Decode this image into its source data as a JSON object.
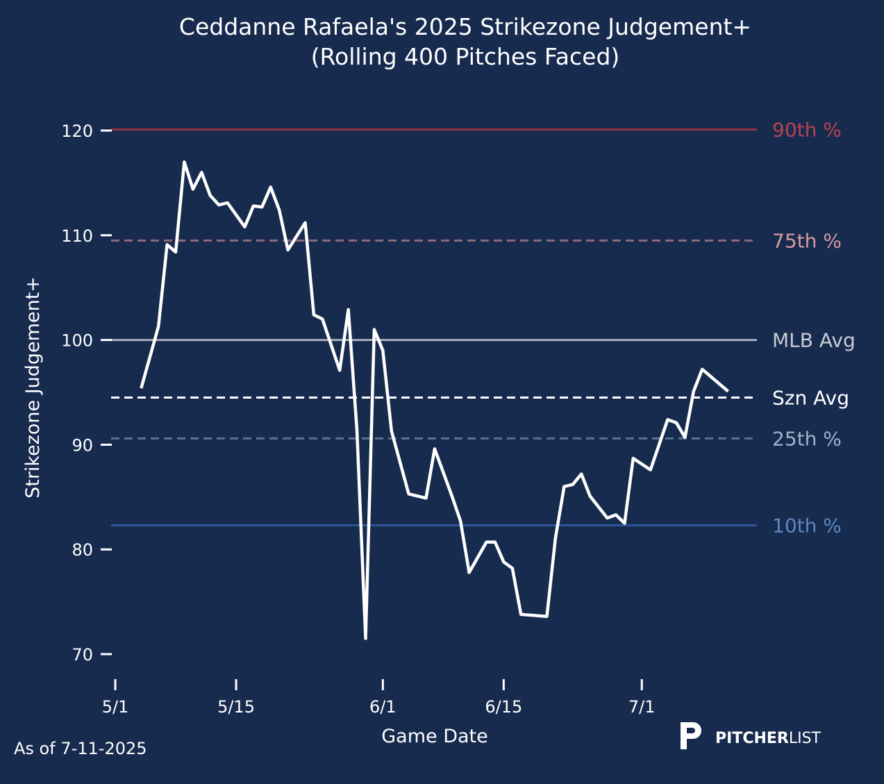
{
  "chart_data": {
    "type": "line",
    "title": "Ceddanne Rafaela's 2025 Strikezone Judgement+",
    "subtitle": "(Rolling 400 Pitches Faced)",
    "xlabel": "Game Date",
    "ylabel": "Strikezone Judgement+",
    "x_units": "days since 5/1",
    "xlim": [
      -0.5,
      74.5
    ],
    "ylim": [
      68,
      124
    ],
    "grid": false,
    "xticks": [
      {
        "value": 0,
        "label": "5/1"
      },
      {
        "value": 14,
        "label": "5/15"
      },
      {
        "value": 31,
        "label": "6/1"
      },
      {
        "value": 45,
        "label": "6/15"
      },
      {
        "value": 61,
        "label": "7/1"
      }
    ],
    "yticks": [
      {
        "value": 70,
        "label": "70"
      },
      {
        "value": 80,
        "label": "80"
      },
      {
        "value": 90,
        "label": "90"
      },
      {
        "value": 100,
        "label": "100"
      },
      {
        "value": 110,
        "label": "110"
      },
      {
        "value": 120,
        "label": "120"
      }
    ],
    "reference_lines": [
      {
        "label": "90th %",
        "value": 120.1,
        "color": "#8e3441",
        "text_color": "#b9434e",
        "dashed": false
      },
      {
        "label": "75th %",
        "value": 109.5,
        "color": "#8d6a79",
        "text_color": "#d89b9c",
        "dashed": true
      },
      {
        "label": "MLB Avg",
        "value": 100,
        "color": "#a8afbc",
        "text_color": "#c9cdd5",
        "dashed": false
      },
      {
        "label": "Szn Avg",
        "value": 94.5,
        "color": "#ffffff",
        "text_color": "#ffffff",
        "dashed": true
      },
      {
        "label": "25th %",
        "value": 90.6,
        "color": "#5c7092",
        "text_color": "#a2b2cc",
        "dashed": true
      },
      {
        "label": "10th %",
        "value": 82.3,
        "color": "#2c5696",
        "text_color": "#5f87c0",
        "dashed": false
      }
    ],
    "series": [
      {
        "name": "Strikezone Judgement+",
        "color": "#ffffff",
        "x": [
          3,
          5,
          6,
          7,
          8,
          9,
          10,
          11,
          12,
          13,
          15,
          16,
          17,
          18,
          19,
          20,
          22,
          23,
          24,
          26,
          27,
          28,
          29,
          30,
          31,
          32,
          34,
          36,
          37,
          39,
          40,
          41,
          43,
          44,
          45,
          46,
          47,
          50,
          51,
          52,
          53,
          54,
          55,
          57,
          58,
          59,
          60,
          62,
          64,
          65,
          66,
          67,
          68,
          71
        ],
        "values": [
          95.4,
          101.3,
          109.1,
          108.4,
          117.0,
          114.4,
          116.0,
          113.8,
          112.9,
          113.1,
          110.8,
          112.8,
          112.7,
          114.6,
          112.4,
          108.6,
          111.2,
          102.4,
          102.0,
          97.1,
          102.9,
          91.4,
          71.5,
          101.0,
          99.0,
          91.3,
          85.3,
          84.9,
          89.6,
          85.1,
          82.7,
          77.8,
          80.7,
          80.7,
          78.8,
          78.2,
          73.8,
          73.6,
          81.1,
          86.0,
          86.2,
          87.2,
          85.1,
          83.0,
          83.3,
          82.5,
          88.7,
          87.6,
          92.4,
          92.1,
          90.7,
          95.1,
          97.2,
          95.1
        ]
      }
    ]
  },
  "footer": {
    "as_of": "As of 7-11-2025",
    "logo_bold": "PITCHER",
    "logo_light": "LIST"
  }
}
